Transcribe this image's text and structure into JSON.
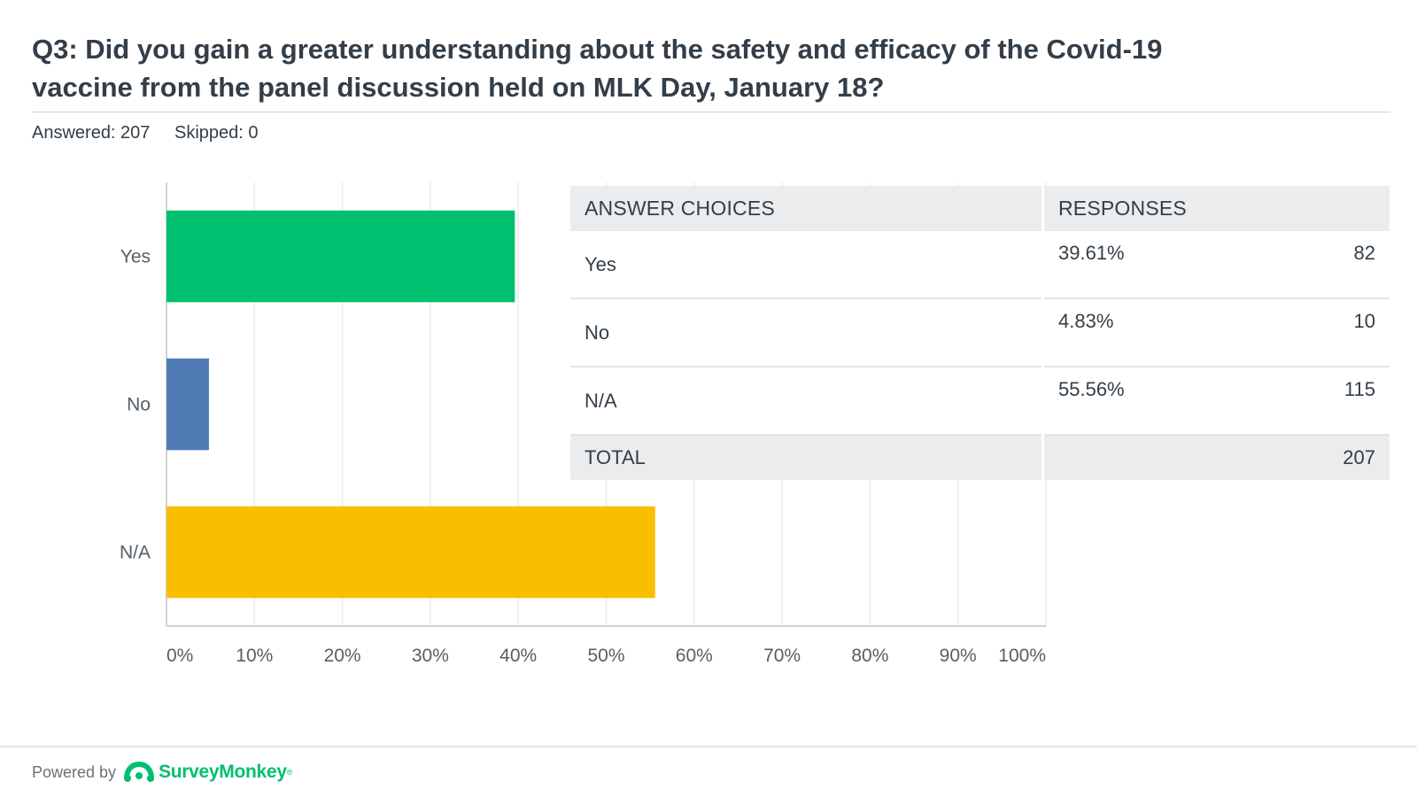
{
  "question": {
    "title": "Q3: Did you gain a greater understanding about the safety and efficacy of the Covid-19 vaccine from the panel discussion held on MLK Day, January 18?",
    "answered": "Answered: 207",
    "skipped": "Skipped: 0"
  },
  "chart_data": {
    "type": "bar",
    "orientation": "horizontal",
    "categories": [
      "Yes",
      "No",
      "N/A"
    ],
    "values": [
      39.61,
      4.83,
      55.56
    ],
    "colors": [
      "#00bf6f",
      "#507cb6",
      "#f9be00"
    ],
    "xlim": [
      0,
      100
    ],
    "xticks": [
      "0%",
      "10%",
      "20%",
      "30%",
      "40%",
      "50%",
      "60%",
      "70%",
      "80%",
      "90%",
      "100%"
    ],
    "grid": true
  },
  "table": {
    "headers": [
      "ANSWER CHOICES",
      "RESPONSES"
    ],
    "rows": [
      {
        "choice": "Yes",
        "percent": "39.61%",
        "count": "82"
      },
      {
        "choice": "No",
        "percent": "4.83%",
        "count": "10"
      },
      {
        "choice": "N/A",
        "percent": "55.56%",
        "count": "115"
      }
    ],
    "total": {
      "label": "TOTAL",
      "count": "207"
    }
  },
  "footer": {
    "powered_by": "Powered by",
    "brand": "SurveyMonkey",
    "brand_mark": "®",
    "brand_color": "#00bf6f",
    "logo_icon": "surveymonkey-logo-icon"
  }
}
